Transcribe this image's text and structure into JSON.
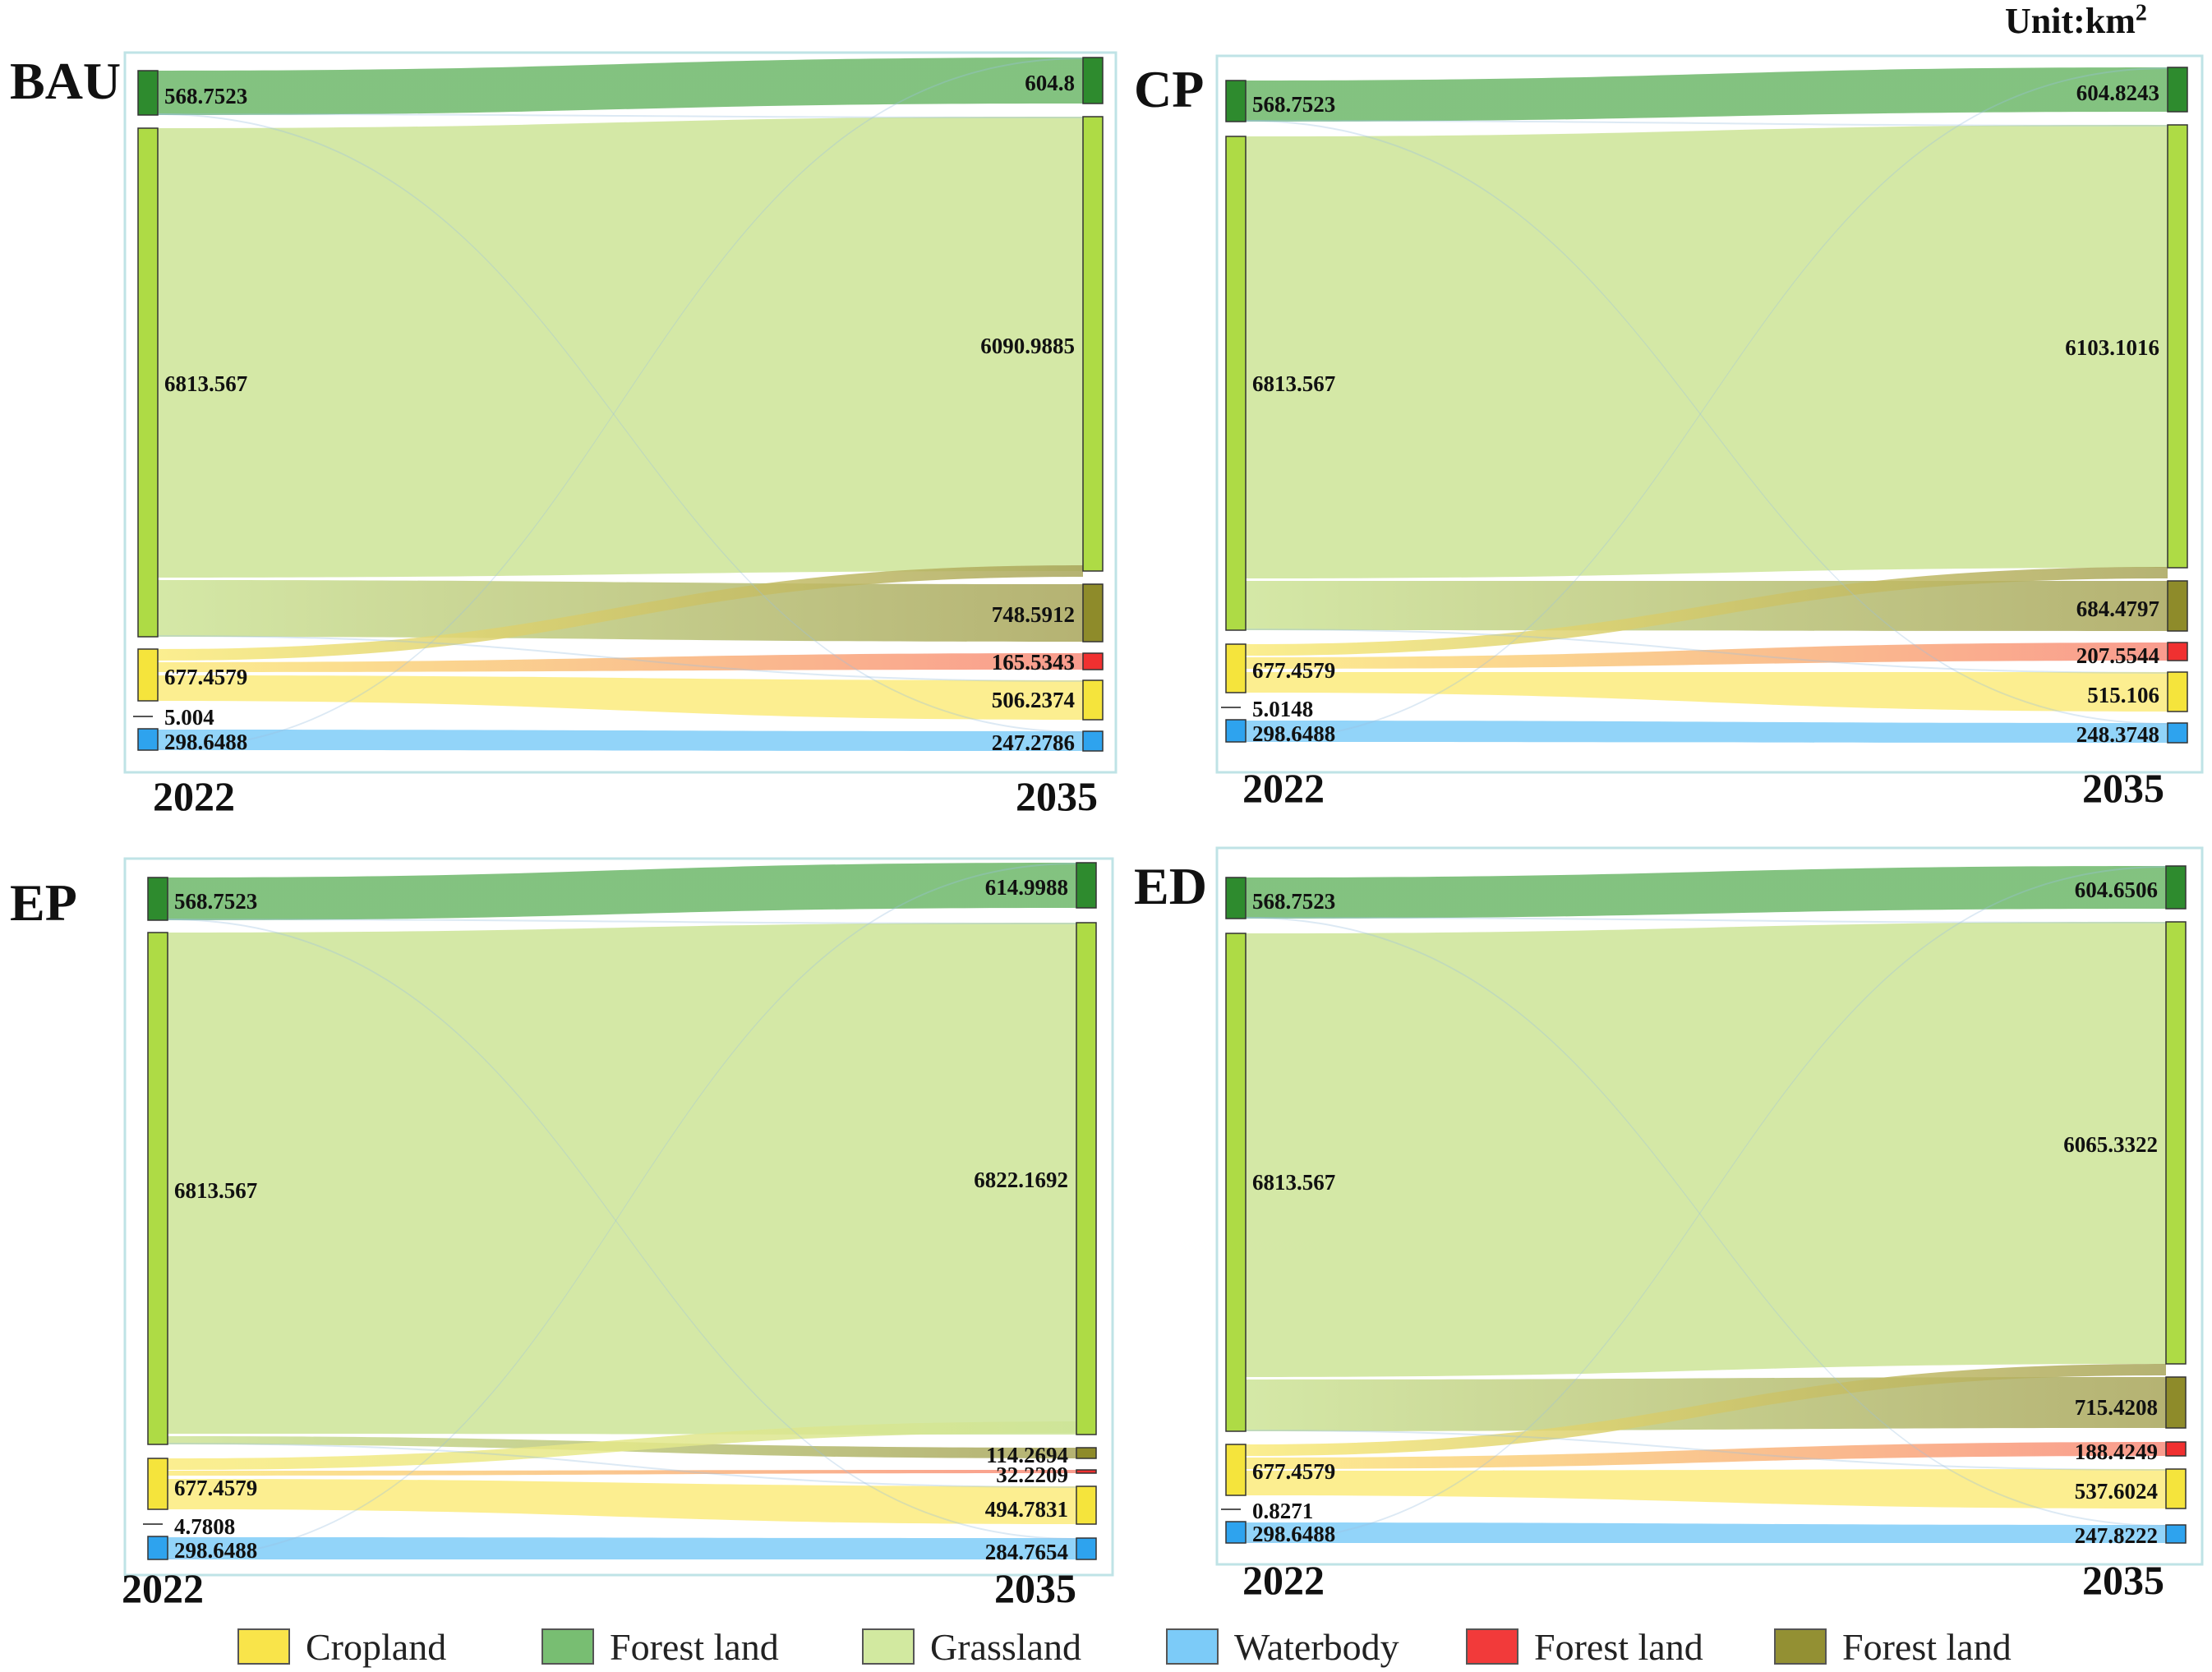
{
  "unit_label": "Unit:km",
  "unit_sup": "2",
  "colors": {
    "cropland": "#F5E43C",
    "forest": "#2E8B2E",
    "grassland": "#AEDB45",
    "waterbody": "#2EA3EE",
    "developed": "#F03030",
    "other": "#8E8B2A"
  },
  "legend": [
    {
      "label": "Cropland",
      "color": "#F9E44A"
    },
    {
      "label": "Forest land",
      "color": "#78BE72"
    },
    {
      "label": "Grassland",
      "color": "#D2E9A0"
    },
    {
      "label": "Waterbody",
      "color": "#7CCBF8"
    },
    {
      "label": "Forest land",
      "color": "#F23A3A"
    },
    {
      "label": "Forest land",
      "color": "#939033"
    }
  ],
  "chart_data": [
    {
      "type": "sankey",
      "title": "BAU",
      "x_start": "2022",
      "x_end": "2035",
      "left": [
        {
          "key": "forest",
          "label": "568.7523"
        },
        {
          "key": "grassland",
          "label": "6813.567"
        },
        {
          "key": "cropland",
          "label": "677.4579"
        },
        {
          "key": "developed",
          "label": "5.004"
        },
        {
          "key": "waterbody",
          "label": "298.6488"
        }
      ],
      "right": [
        {
          "key": "forest",
          "label": "604.8"
        },
        {
          "key": "grassland",
          "label": "6090.9885"
        },
        {
          "key": "other",
          "label": "748.5912"
        },
        {
          "key": "developed",
          "label": "165.5343"
        },
        {
          "key": "cropland",
          "label": "506.2374"
        },
        {
          "key": "waterbody",
          "label": "247.2786"
        }
      ]
    },
    {
      "type": "sankey",
      "title": "CP",
      "x_start": "2022",
      "x_end": "2035",
      "left": [
        {
          "key": "forest",
          "label": "568.7523"
        },
        {
          "key": "grassland",
          "label": "6813.567"
        },
        {
          "key": "cropland",
          "label": "677.4579"
        },
        {
          "key": "developed",
          "label": "5.0148"
        },
        {
          "key": "waterbody",
          "label": "298.6488"
        }
      ],
      "right": [
        {
          "key": "forest",
          "label": "604.8243"
        },
        {
          "key": "grassland",
          "label": "6103.1016"
        },
        {
          "key": "other",
          "label": "684.4797"
        },
        {
          "key": "developed",
          "label": "207.5544"
        },
        {
          "key": "cropland",
          "label": "515.106"
        },
        {
          "key": "waterbody",
          "label": "248.3748"
        }
      ]
    },
    {
      "type": "sankey",
      "title": "EP",
      "x_start": "2022",
      "x_end": "2035",
      "left": [
        {
          "key": "forest",
          "label": "568.7523"
        },
        {
          "key": "grassland",
          "label": "6813.567"
        },
        {
          "key": "cropland",
          "label": "677.4579"
        },
        {
          "key": "developed",
          "label": "4.7808"
        },
        {
          "key": "waterbody",
          "label": "298.6488"
        }
      ],
      "right": [
        {
          "key": "forest",
          "label": "614.9988"
        },
        {
          "key": "grassland",
          "label": "6822.1692"
        },
        {
          "key": "other",
          "label": "114.2694"
        },
        {
          "key": "developed",
          "label": "32.2209"
        },
        {
          "key": "cropland",
          "label": "494.7831"
        },
        {
          "key": "waterbody",
          "label": "284.7654"
        }
      ]
    },
    {
      "type": "sankey",
      "title": "ED",
      "x_start": "2022",
      "x_end": "2035",
      "left": [
        {
          "key": "forest",
          "label": "568.7523"
        },
        {
          "key": "grassland",
          "label": "6813.567"
        },
        {
          "key": "cropland",
          "label": "677.4579"
        },
        {
          "key": "developed",
          "label": "0.8271"
        },
        {
          "key": "waterbody",
          "label": "298.6488"
        }
      ],
      "right": [
        {
          "key": "forest",
          "label": "604.6506"
        },
        {
          "key": "grassland",
          "label": "6065.3322"
        },
        {
          "key": "other",
          "label": "715.4208"
        },
        {
          "key": "developed",
          "label": "188.4249"
        },
        {
          "key": "cropland",
          "label": "537.6024"
        },
        {
          "key": "waterbody",
          "label": "247.8222"
        }
      ]
    }
  ]
}
